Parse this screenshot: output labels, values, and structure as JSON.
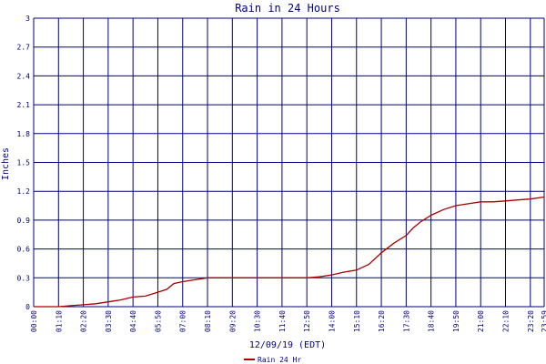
{
  "chart_data": {
    "type": "line",
    "title": "Rain in 24 Hours",
    "xlabel": "12/09/19 (EDT)",
    "ylabel": "Inches",
    "ylim": [
      0,
      3
    ],
    "y_ticks": [
      "0",
      "0.3",
      "0.6",
      "0.9",
      "1.2",
      "1.5",
      "1.8",
      "2.1",
      "2.4",
      "2.7",
      "3"
    ],
    "x_ticks": [
      "00:00",
      "01:10",
      "02:20",
      "03:30",
      "04:40",
      "05:50",
      "07:00",
      "08:10",
      "09:20",
      "10:30",
      "11:40",
      "12:50",
      "14:00",
      "15:10",
      "16:20",
      "17:30",
      "18:40",
      "19:50",
      "21:00",
      "22:10",
      "23:20",
      "23:59"
    ],
    "grid": true,
    "legend_position": "bottom-center",
    "colors": {
      "series": "#aa0000",
      "grid": "#000080",
      "text": "#000080"
    },
    "series": [
      {
        "name": "Rain 24 Hr",
        "points": [
          [
            "00:00",
            0.0
          ],
          [
            "01:10",
            0.0
          ],
          [
            "01:45",
            0.01
          ],
          [
            "02:20",
            0.02
          ],
          [
            "02:55",
            0.03
          ],
          [
            "03:30",
            0.05
          ],
          [
            "04:05",
            0.07
          ],
          [
            "04:40",
            0.1
          ],
          [
            "05:15",
            0.11
          ],
          [
            "05:50",
            0.15
          ],
          [
            "06:15",
            0.18
          ],
          [
            "06:35",
            0.24
          ],
          [
            "07:00",
            0.26
          ],
          [
            "07:35",
            0.28
          ],
          [
            "08:10",
            0.3
          ],
          [
            "09:20",
            0.3
          ],
          [
            "10:30",
            0.3
          ],
          [
            "11:40",
            0.3
          ],
          [
            "12:50",
            0.3
          ],
          [
            "13:25",
            0.31
          ],
          [
            "14:00",
            0.33
          ],
          [
            "14:35",
            0.36
          ],
          [
            "15:10",
            0.38
          ],
          [
            "15:45",
            0.44
          ],
          [
            "16:20",
            0.56
          ],
          [
            "16:55",
            0.66
          ],
          [
            "17:30",
            0.74
          ],
          [
            "17:50",
            0.82
          ],
          [
            "18:10",
            0.88
          ],
          [
            "18:40",
            0.95
          ],
          [
            "19:15",
            1.01
          ],
          [
            "19:50",
            1.05
          ],
          [
            "20:25",
            1.07
          ],
          [
            "21:00",
            1.09
          ],
          [
            "21:35",
            1.09
          ],
          [
            "22:10",
            1.1
          ],
          [
            "22:45",
            1.11
          ],
          [
            "23:20",
            1.12
          ],
          [
            "23:59",
            1.14
          ]
        ]
      }
    ]
  }
}
